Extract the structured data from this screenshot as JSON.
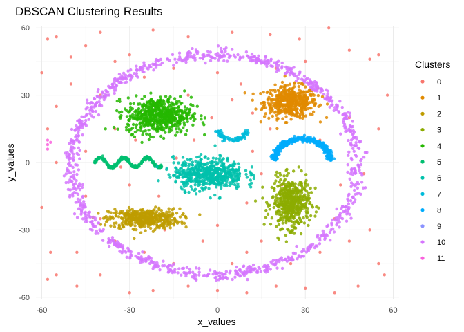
{
  "chart_data": {
    "type": "scatter",
    "title": "DBSCAN Clustering Results",
    "xlabel": "x_values",
    "ylabel": "y_values",
    "xlim": [
      -62,
      62
    ],
    "ylim": [
      -61,
      61
    ],
    "x_ticks": [
      -60,
      -30,
      0,
      30,
      60
    ],
    "y_ticks": [
      -60,
      -30,
      0,
      30,
      60
    ],
    "grid": true,
    "legend": {
      "title": "Clusters",
      "placement": "right",
      "entries": [
        "0",
        "1",
        "2",
        "3",
        "4",
        "5",
        "6",
        "7",
        "8",
        "9",
        "10",
        "11"
      ]
    },
    "colors": {
      "0": "#F8766D",
      "1": "#E18A00",
      "2": "#BE9C00",
      "3": "#8CAB00",
      "4": "#24B700",
      "5": "#00BE70",
      "6": "#00C1AB",
      "7": "#00BBDA",
      "8": "#00ACFC",
      "9": "#8B93FF",
      "10": "#D575FE",
      "11": "#F962DD"
    },
    "clusters": [
      {
        "cluster": "0",
        "shape": "scatter",
        "points": [
          [
            -58,
            55
          ],
          [
            -55,
            56
          ],
          [
            -50,
            47
          ],
          [
            -45,
            52
          ],
          [
            -40,
            58
          ],
          [
            -35,
            45
          ],
          [
            -30,
            48
          ],
          [
            -22,
            59
          ],
          [
            -10,
            56
          ],
          [
            5,
            58
          ],
          [
            18,
            57
          ],
          [
            28,
            55
          ],
          [
            38,
            60
          ],
          [
            45,
            50
          ],
          [
            52,
            46
          ],
          [
            55,
            48
          ],
          [
            58,
            30
          ],
          [
            55,
            15
          ],
          [
            50,
            -5
          ],
          [
            52,
            -30
          ],
          [
            55,
            -45
          ],
          [
            57,
            -50
          ],
          [
            48,
            -55
          ],
          [
            40,
            -58
          ],
          [
            30,
            -56
          ],
          [
            20,
            -55
          ],
          [
            10,
            -58
          ],
          [
            0,
            -57
          ],
          [
            -10,
            -55
          ],
          [
            -22,
            -57
          ],
          [
            -30,
            -58
          ],
          [
            -40,
            -50
          ],
          [
            -48,
            -55
          ],
          [
            -55,
            -50
          ],
          [
            -58,
            -52
          ],
          [
            -57,
            -40
          ],
          [
            -60,
            -20
          ],
          [
            -55,
            0
          ],
          [
            -58,
            15
          ],
          [
            -55,
            25
          ],
          [
            -60,
            40
          ],
          [
            -50,
            35
          ],
          [
            -48,
            -40
          ],
          [
            -35,
            -35
          ],
          [
            -15,
            -45
          ],
          [
            5,
            -45
          ],
          [
            15,
            -35
          ],
          [
            0,
            -28
          ],
          [
            10,
            -18
          ],
          [
            15,
            -5
          ],
          [
            12,
            5
          ],
          [
            -8,
            10
          ],
          [
            -14,
            2
          ],
          [
            -28,
            10
          ],
          [
            -35,
            15
          ],
          [
            -40,
            30
          ],
          [
            -10,
            30
          ],
          [
            5,
            28
          ],
          [
            12,
            22
          ],
          [
            18,
            15
          ],
          [
            35,
            10
          ],
          [
            45,
            20
          ],
          [
            42,
            -10
          ],
          [
            45,
            -35
          ],
          [
            35,
            -40
          ],
          [
            -25,
            -40
          ],
          [
            -40,
            -25
          ],
          [
            -45,
            5
          ],
          [
            -20,
            -15
          ],
          [
            -30,
            -10
          ],
          [
            0,
            40
          ],
          [
            -15,
            42
          ],
          [
            20,
            42
          ],
          [
            30,
            45
          ],
          [
            -25,
            38
          ],
          [
            10,
            -40
          ],
          [
            -5,
            -35
          ],
          [
            25,
            -45
          ],
          [
            -45,
            -15
          ],
          [
            40,
            -25
          ],
          [
            -2,
            20
          ],
          [
            8,
            35
          ],
          [
            -18,
            -30
          ],
          [
            22,
            -10
          ],
          [
            -33,
            -2
          ]
        ]
      },
      {
        "cluster": "1",
        "shape": "blob",
        "center": [
          25,
          27
        ],
        "spread": [
          4.5,
          3.5
        ],
        "count": 500
      },
      {
        "cluster": "2",
        "shape": "blob",
        "center": [
          -25,
          -25
        ],
        "spread": [
          6,
          2.2
        ],
        "count": 450
      },
      {
        "cluster": "3",
        "shape": "blob",
        "center": [
          25,
          -18
        ],
        "spread": [
          3.2,
          5.5
        ],
        "count": 500
      },
      {
        "cluster": "4",
        "shape": "blob",
        "center": [
          -20,
          21
        ],
        "spread": [
          5.5,
          4
        ],
        "count": 600
      },
      {
        "cluster": "5",
        "shape": "sine",
        "x_range": [
          -42,
          -19
        ],
        "center_y": 0,
        "amplitude": 2.2,
        "period": 8,
        "count": 260
      },
      {
        "cluster": "6",
        "shape": "blob",
        "center": [
          -3,
          -5
        ],
        "spread": [
          6,
          3.5
        ],
        "count": 550
      },
      {
        "cluster": "7",
        "shape": "arc",
        "center": [
          5,
          15
        ],
        "radius": 5,
        "angle_range_deg": [
          190,
          360
        ],
        "count": 80
      },
      {
        "cluster": "8",
        "shape": "arc",
        "center": [
          29,
          1
        ],
        "radius": 9.5,
        "angle_range_deg": [
          0,
          180
        ],
        "count": 450
      },
      {
        "cluster": "9",
        "shape": "blob",
        "center": [
          0,
          0
        ],
        "spread": [
          0,
          0
        ],
        "count": 0
      },
      {
        "cluster": "10",
        "shape": "ring",
        "center": [
          -1,
          -1
        ],
        "radius": [
          49,
          49
        ],
        "count": 1050
      },
      {
        "cluster": "11",
        "shape": "scatter",
        "points": [
          [
            -58,
            10
          ],
          [
            -58,
            8
          ],
          [
            -58,
            6
          ],
          [
            -57,
            9
          ]
        ]
      }
    ]
  }
}
